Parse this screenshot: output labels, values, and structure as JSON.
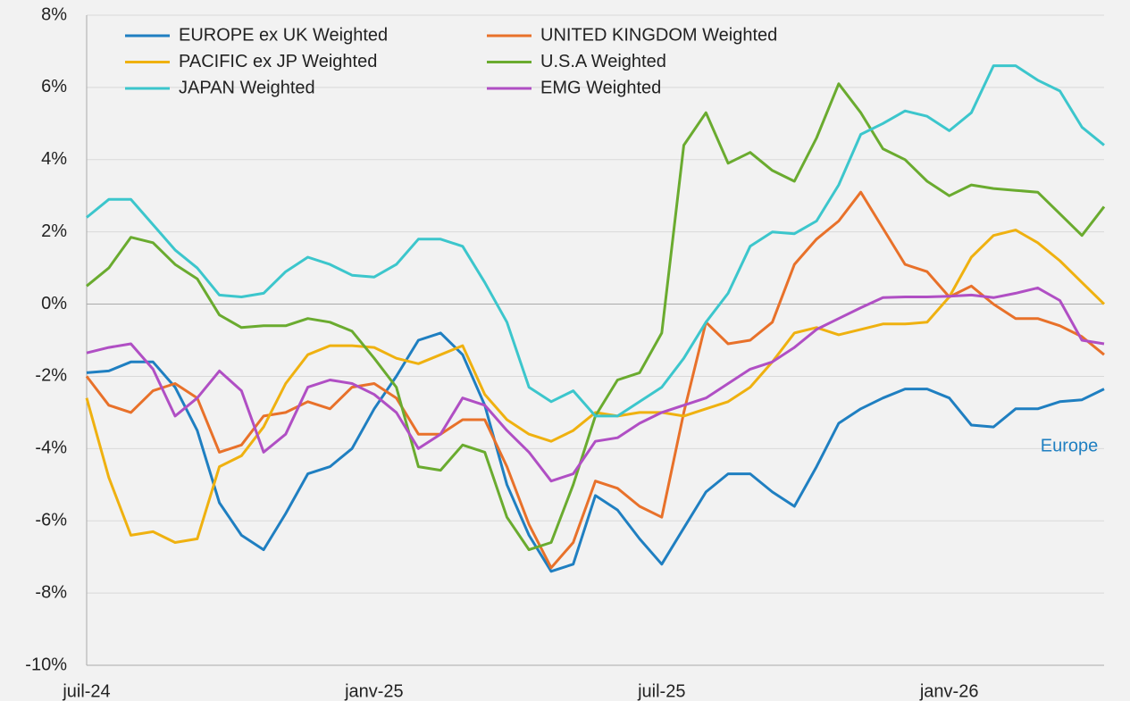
{
  "chart_data": {
    "type": "line",
    "categories": [
      "juil-24",
      null,
      null,
      null,
      null,
      null,
      null,
      null,
      null,
      null,
      null,
      null,
      null,
      "janv-25",
      null,
      null,
      null,
      null,
      null,
      null,
      null,
      null,
      null,
      null,
      null,
      null,
      "juil-25",
      null,
      null,
      null,
      null,
      null,
      null,
      null,
      null,
      null,
      null,
      null,
      null,
      "janv-26",
      null,
      null,
      null,
      null,
      null,
      null,
      null
    ],
    "ylim": [
      -10,
      8
    ],
    "yticks": [
      {
        "value": -10,
        "label": "-10%"
      },
      {
        "value": -8,
        "label": "-8%"
      },
      {
        "value": -6,
        "label": "-6%"
      },
      {
        "value": -4,
        "label": "-4%"
      },
      {
        "value": -2,
        "label": "-2%"
      },
      {
        "value": 0,
        "label": "0%"
      },
      {
        "value": 2,
        "label": "2%"
      },
      {
        "value": 4,
        "label": "4%"
      },
      {
        "value": 6,
        "label": "6%"
      },
      {
        "value": 8,
        "label": "8%"
      }
    ],
    "grid": true,
    "annotation": "Europe",
    "series": [
      {
        "name": "EUROPE ex UK Weighted",
        "color": "#1f7fc1",
        "values": [
          -1.9,
          -1.85,
          -1.6,
          -1.6,
          -2.3,
          -3.5,
          -5.5,
          -6.4,
          -6.8,
          -5.8,
          -4.7,
          -4.5,
          -4.0,
          -2.9,
          -2.0,
          -1.0,
          -0.8,
          -1.4,
          -2.8,
          -5.0,
          -6.4,
          -7.4,
          -7.2,
          -5.3,
          -5.7,
          -6.5,
          -7.2,
          -6.2,
          -5.2,
          -4.7,
          -4.7,
          -5.2,
          -5.6,
          -4.5,
          -3.3,
          -2.9,
          -2.6,
          -2.35,
          -2.35,
          -2.6,
          -3.35,
          -3.4,
          -2.9,
          -2.9,
          -2.7,
          -2.65,
          -2.35
        ]
      },
      {
        "name": "UNITED KINGDOM Weighted",
        "color": "#e8712a",
        "values": [
          -2.0,
          -2.8,
          -3.0,
          -2.4,
          -2.2,
          -2.6,
          -4.1,
          -3.9,
          -3.1,
          -3.0,
          -2.7,
          -2.9,
          -2.3,
          -2.2,
          -2.6,
          -3.6,
          -3.6,
          -3.2,
          -3.2,
          -4.5,
          -6.1,
          -7.3,
          -6.6,
          -4.9,
          -5.1,
          -5.6,
          -5.9,
          -3.0,
          -0.5,
          -1.1,
          -1.0,
          -0.5,
          1.1,
          1.8,
          2.3,
          3.1,
          2.1,
          1.1,
          0.9,
          0.2,
          0.5,
          0.0,
          -0.4,
          -0.4,
          -0.6,
          -0.9,
          -1.4
        ]
      },
      {
        "name": "PACIFIC ex JP Weighted",
        "color": "#efb110",
        "values": [
          -2.6,
          -4.8,
          -6.4,
          -6.3,
          -6.6,
          -6.5,
          -4.5,
          -4.2,
          -3.4,
          -2.2,
          -1.4,
          -1.15,
          -1.15,
          -1.2,
          -1.5,
          -1.65,
          -1.4,
          -1.15,
          -2.5,
          -3.2,
          -3.6,
          -3.8,
          -3.5,
          -3.0,
          -3.1,
          -3.0,
          -3.0,
          -3.1,
          -2.9,
          -2.7,
          -2.3,
          -1.6,
          -0.8,
          -0.65,
          -0.85,
          -0.7,
          -0.55,
          -0.55,
          -0.5,
          0.2,
          1.3,
          1.9,
          2.05,
          1.7,
          1.2,
          0.6,
          0.0
        ]
      },
      {
        "name": "U.S.A  Weighted",
        "color": "#6aab2f",
        "values": [
          0.5,
          1.0,
          1.85,
          1.7,
          1.1,
          0.7,
          -0.3,
          -0.65,
          -0.6,
          -0.6,
          -0.4,
          -0.5,
          -0.75,
          -1.5,
          -2.3,
          -4.5,
          -4.6,
          -3.9,
          -4.1,
          -5.9,
          -6.8,
          -6.6,
          -5.0,
          -3.1,
          -2.1,
          -1.9,
          -0.8,
          4.4,
          5.3,
          3.9,
          4.2,
          3.7,
          3.4,
          4.6,
          6.1,
          5.3,
          4.3,
          4.0,
          3.4,
          3.0,
          3.3,
          3.2,
          3.15,
          3.1,
          2.5,
          1.9,
          2.7
        ]
      },
      {
        "name": "JAPAN Weighted",
        "color": "#3cc6cc",
        "values": [
          2.4,
          2.9,
          2.9,
          2.2,
          1.5,
          1.0,
          0.25,
          0.2,
          0.3,
          0.9,
          1.3,
          1.1,
          0.8,
          0.75,
          1.1,
          1.8,
          1.8,
          1.6,
          0.6,
          -0.5,
          -2.3,
          -2.7,
          -2.4,
          -3.1,
          -3.1,
          -2.7,
          -2.3,
          -1.5,
          -0.5,
          0.3,
          1.6,
          2.0,
          1.95,
          2.3,
          3.3,
          4.7,
          5.0,
          5.35,
          5.2,
          4.8,
          5.3,
          6.6,
          6.6,
          6.2,
          5.9,
          4.9,
          4.4
        ]
      },
      {
        "name": "EMG Weighted",
        "color": "#b04fc4",
        "values": [
          -1.35,
          -1.2,
          -1.1,
          -1.8,
          -3.1,
          -2.6,
          -1.85,
          -2.4,
          -4.1,
          -3.6,
          -2.3,
          -2.1,
          -2.2,
          -2.5,
          -3.0,
          -4.0,
          -3.6,
          -2.6,
          -2.8,
          -3.5,
          -4.1,
          -4.9,
          -4.7,
          -3.8,
          -3.7,
          -3.3,
          -3.0,
          -2.8,
          -2.6,
          -2.2,
          -1.8,
          -1.6,
          -1.2,
          -0.7,
          -0.4,
          -0.1,
          0.18,
          0.2,
          0.2,
          0.22,
          0.25,
          0.18,
          0.3,
          0.45,
          0.1,
          -1.0,
          -1.1
        ]
      }
    ]
  }
}
